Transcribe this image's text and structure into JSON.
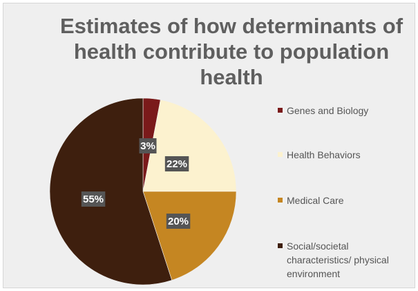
{
  "chart_data": {
    "type": "pie",
    "title": "Estimates of how determinants of health contribute to population health",
    "legend_position": "right",
    "slices": [
      {
        "name": "Genes and Biology",
        "value": 3,
        "label": "3%",
        "color": "#7a1a1a"
      },
      {
        "name": "Health Behaviors",
        "value": 22,
        "label": "22%",
        "color": "#fcf2cf"
      },
      {
        "name": "Medical Care",
        "value": 20,
        "label": "20%",
        "color": "#c58622"
      },
      {
        "name": "Social/societal characteristics/ physical environment",
        "value": 55,
        "label": "55%",
        "color": "#3e1f0e"
      }
    ],
    "label_box_color": "#555555",
    "background_color": "#efefef",
    "title_color": "#5f5f5f"
  }
}
